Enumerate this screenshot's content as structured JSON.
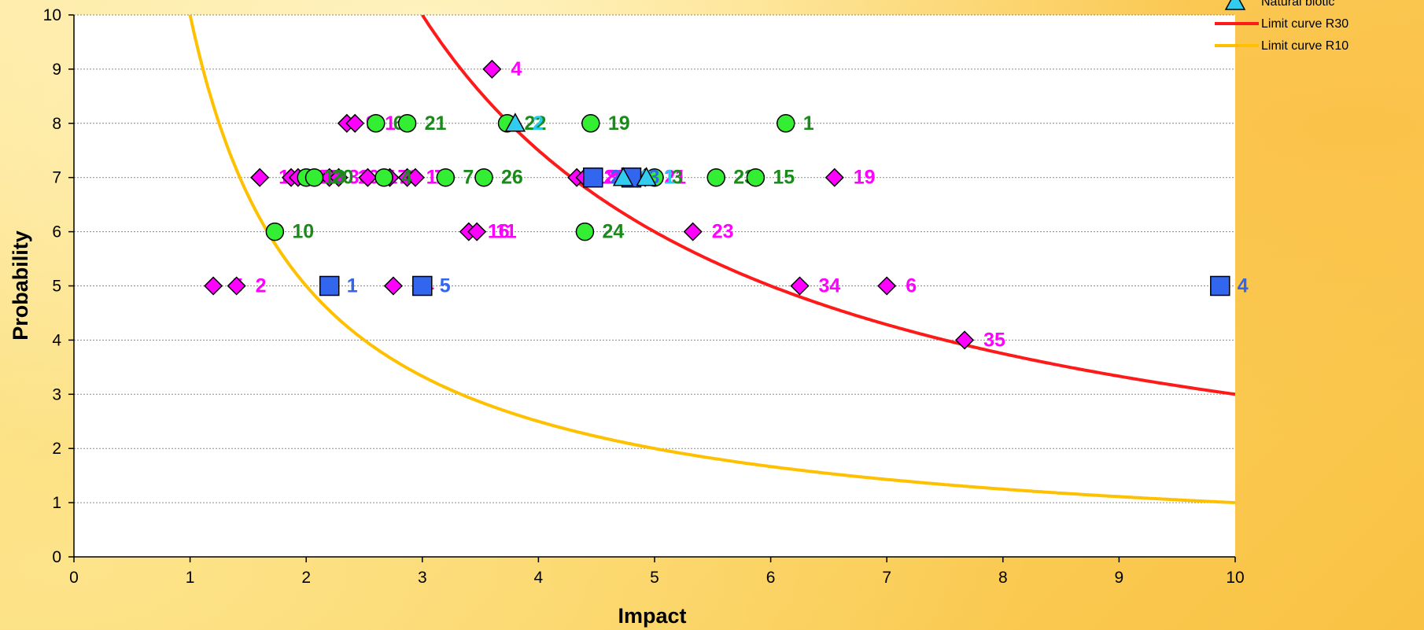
{
  "chart_data": {
    "type": "scatter",
    "title": "",
    "xlabel": "Impact",
    "ylabel": "Probability",
    "xlim": [
      0,
      10
    ],
    "ylim": [
      0,
      10
    ],
    "xticks": [
      "0",
      "1",
      "2",
      "3",
      "4",
      "5",
      "6",
      "7",
      "8",
      "9",
      "10"
    ],
    "yticks": [
      "0",
      "1",
      "2",
      "3",
      "4",
      "5",
      "6",
      "7",
      "8",
      "9",
      "10"
    ],
    "grid": true,
    "legend_position": "top-right",
    "series": [
      {
        "name": "",
        "marker": "diamond",
        "color": "#ff00ff",
        "label_color": "#ff00ff",
        "points": [
          {
            "x": 3.6,
            "y": 9,
            "label": "4"
          },
          {
            "x": 2.35,
            "y": 8,
            "label": "9"
          },
          {
            "x": 2.42,
            "y": 8,
            "label": "31"
          },
          {
            "x": 1.6,
            "y": 7,
            "label": "1"
          },
          {
            "x": 1.87,
            "y": 7,
            "label": "30"
          },
          {
            "x": 1.93,
            "y": 7,
            "label": "25"
          },
          {
            "x": 2.2,
            "y": 7,
            "label": "33"
          },
          {
            "x": 2.28,
            "y": 7,
            "label": "10"
          },
          {
            "x": 2.53,
            "y": 7,
            "label": "17"
          },
          {
            "x": 2.72,
            "y": 7,
            "label": "8"
          },
          {
            "x": 2.87,
            "y": 7,
            "label": "12"
          },
          {
            "x": 2.94,
            "y": 7,
            "label": "7"
          },
          {
            "x": 4.33,
            "y": 7,
            "label": "18"
          },
          {
            "x": 4.4,
            "y": 7,
            "label": "20"
          },
          {
            "x": 4.92,
            "y": 7,
            "label": "21"
          },
          {
            "x": 6.55,
            "y": 7,
            "label": "19"
          },
          {
            "x": 3.4,
            "y": 6,
            "label": "16"
          },
          {
            "x": 3.47,
            "y": 6,
            "label": "11"
          },
          {
            "x": 5.33,
            "y": 6,
            "label": "23"
          },
          {
            "x": 1.2,
            "y": 5,
            "label": "5"
          },
          {
            "x": 1.4,
            "y": 5,
            "label": "2"
          },
          {
            "x": 2.75,
            "y": 5,
            "label": "24"
          },
          {
            "x": 6.25,
            "y": 5,
            "label": "34"
          },
          {
            "x": 7.0,
            "y": 5,
            "label": "6"
          },
          {
            "x": 7.67,
            "y": 4,
            "label": "35"
          }
        ]
      },
      {
        "name": "",
        "marker": "circle",
        "color": "#33ee33",
        "label_color": "#1a8a1a",
        "points": [
          {
            "x": 2.6,
            "y": 8,
            "label": "6"
          },
          {
            "x": 2.87,
            "y": 8,
            "label": "21"
          },
          {
            "x": 3.73,
            "y": 8,
            "label": "22"
          },
          {
            "x": 4.45,
            "y": 8,
            "label": "19"
          },
          {
            "x": 6.13,
            "y": 8,
            "label": "1"
          },
          {
            "x": 2.0,
            "y": 7,
            "label": "13"
          },
          {
            "x": 2.07,
            "y": 7,
            "label": "20"
          },
          {
            "x": 2.67,
            "y": 7,
            "label": "4"
          },
          {
            "x": 3.2,
            "y": 7,
            "label": "7"
          },
          {
            "x": 3.53,
            "y": 7,
            "label": "26"
          },
          {
            "x": 5.0,
            "y": 7,
            "label": "3"
          },
          {
            "x": 5.53,
            "y": 7,
            "label": "23"
          },
          {
            "x": 5.87,
            "y": 7,
            "label": "15"
          },
          {
            "x": 1.73,
            "y": 6,
            "label": "10"
          },
          {
            "x": 4.4,
            "y": 6,
            "label": "24"
          }
        ]
      },
      {
        "name": "",
        "marker": "square",
        "color": "#3366ee",
        "label_color": "#3366ee",
        "points": [
          {
            "x": 4.47,
            "y": 7,
            "label": "2"
          },
          {
            "x": 4.8,
            "y": 7,
            "label": "3"
          },
          {
            "x": 2.2,
            "y": 5,
            "label": "1"
          },
          {
            "x": 3.0,
            "y": 5,
            "label": "5"
          },
          {
            "x": 9.87,
            "y": 5,
            "label": "4"
          }
        ]
      },
      {
        "name": "Natural biotic",
        "marker": "triangle",
        "color": "#33ccee",
        "label_color": "#22ccee",
        "points": [
          {
            "x": 3.8,
            "y": 8,
            "label": "2"
          },
          {
            "x": 4.73,
            "y": 7,
            "label": "3"
          },
          {
            "x": 4.93,
            "y": 7,
            "label": "1"
          }
        ]
      }
    ],
    "curves": [
      {
        "name": "Limit curve R30",
        "product": 30,
        "color": "#ff1a1a"
      },
      {
        "name": "Limit curve R10",
        "product": 10,
        "color": "#ffc000"
      }
    ]
  }
}
